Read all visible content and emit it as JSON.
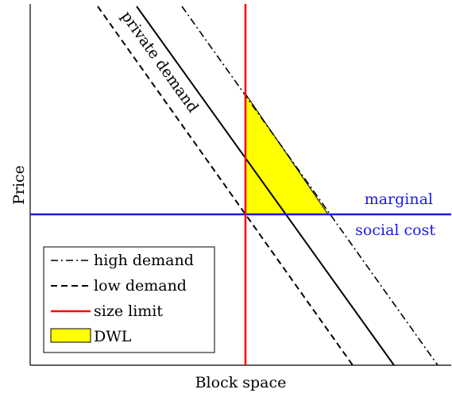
{
  "diagram": {
    "xlabel": "Block space",
    "ylabel": "Price",
    "labels": {
      "private_demand": "private demand",
      "marginal_line1": "marginal",
      "marginal_line2": "social cost"
    },
    "legend": [
      {
        "key": "high",
        "label": "high demand",
        "style": "dash-dot",
        "color": "#000000"
      },
      {
        "key": "low",
        "label": "low demand",
        "style": "dashed",
        "color": "#000000"
      },
      {
        "key": "limit",
        "label": "size limit",
        "style": "solid",
        "color": "#ff0000"
      },
      {
        "key": "dwl",
        "label": "DWL",
        "style": "fill",
        "color": "#ffff00"
      }
    ],
    "colors": {
      "axes": "#000000",
      "private_demand": "#000000",
      "marginal_social_cost": "#1a1ae6",
      "size_limit": "#ff0000",
      "dwl_fill": "#ffff00"
    }
  }
}
